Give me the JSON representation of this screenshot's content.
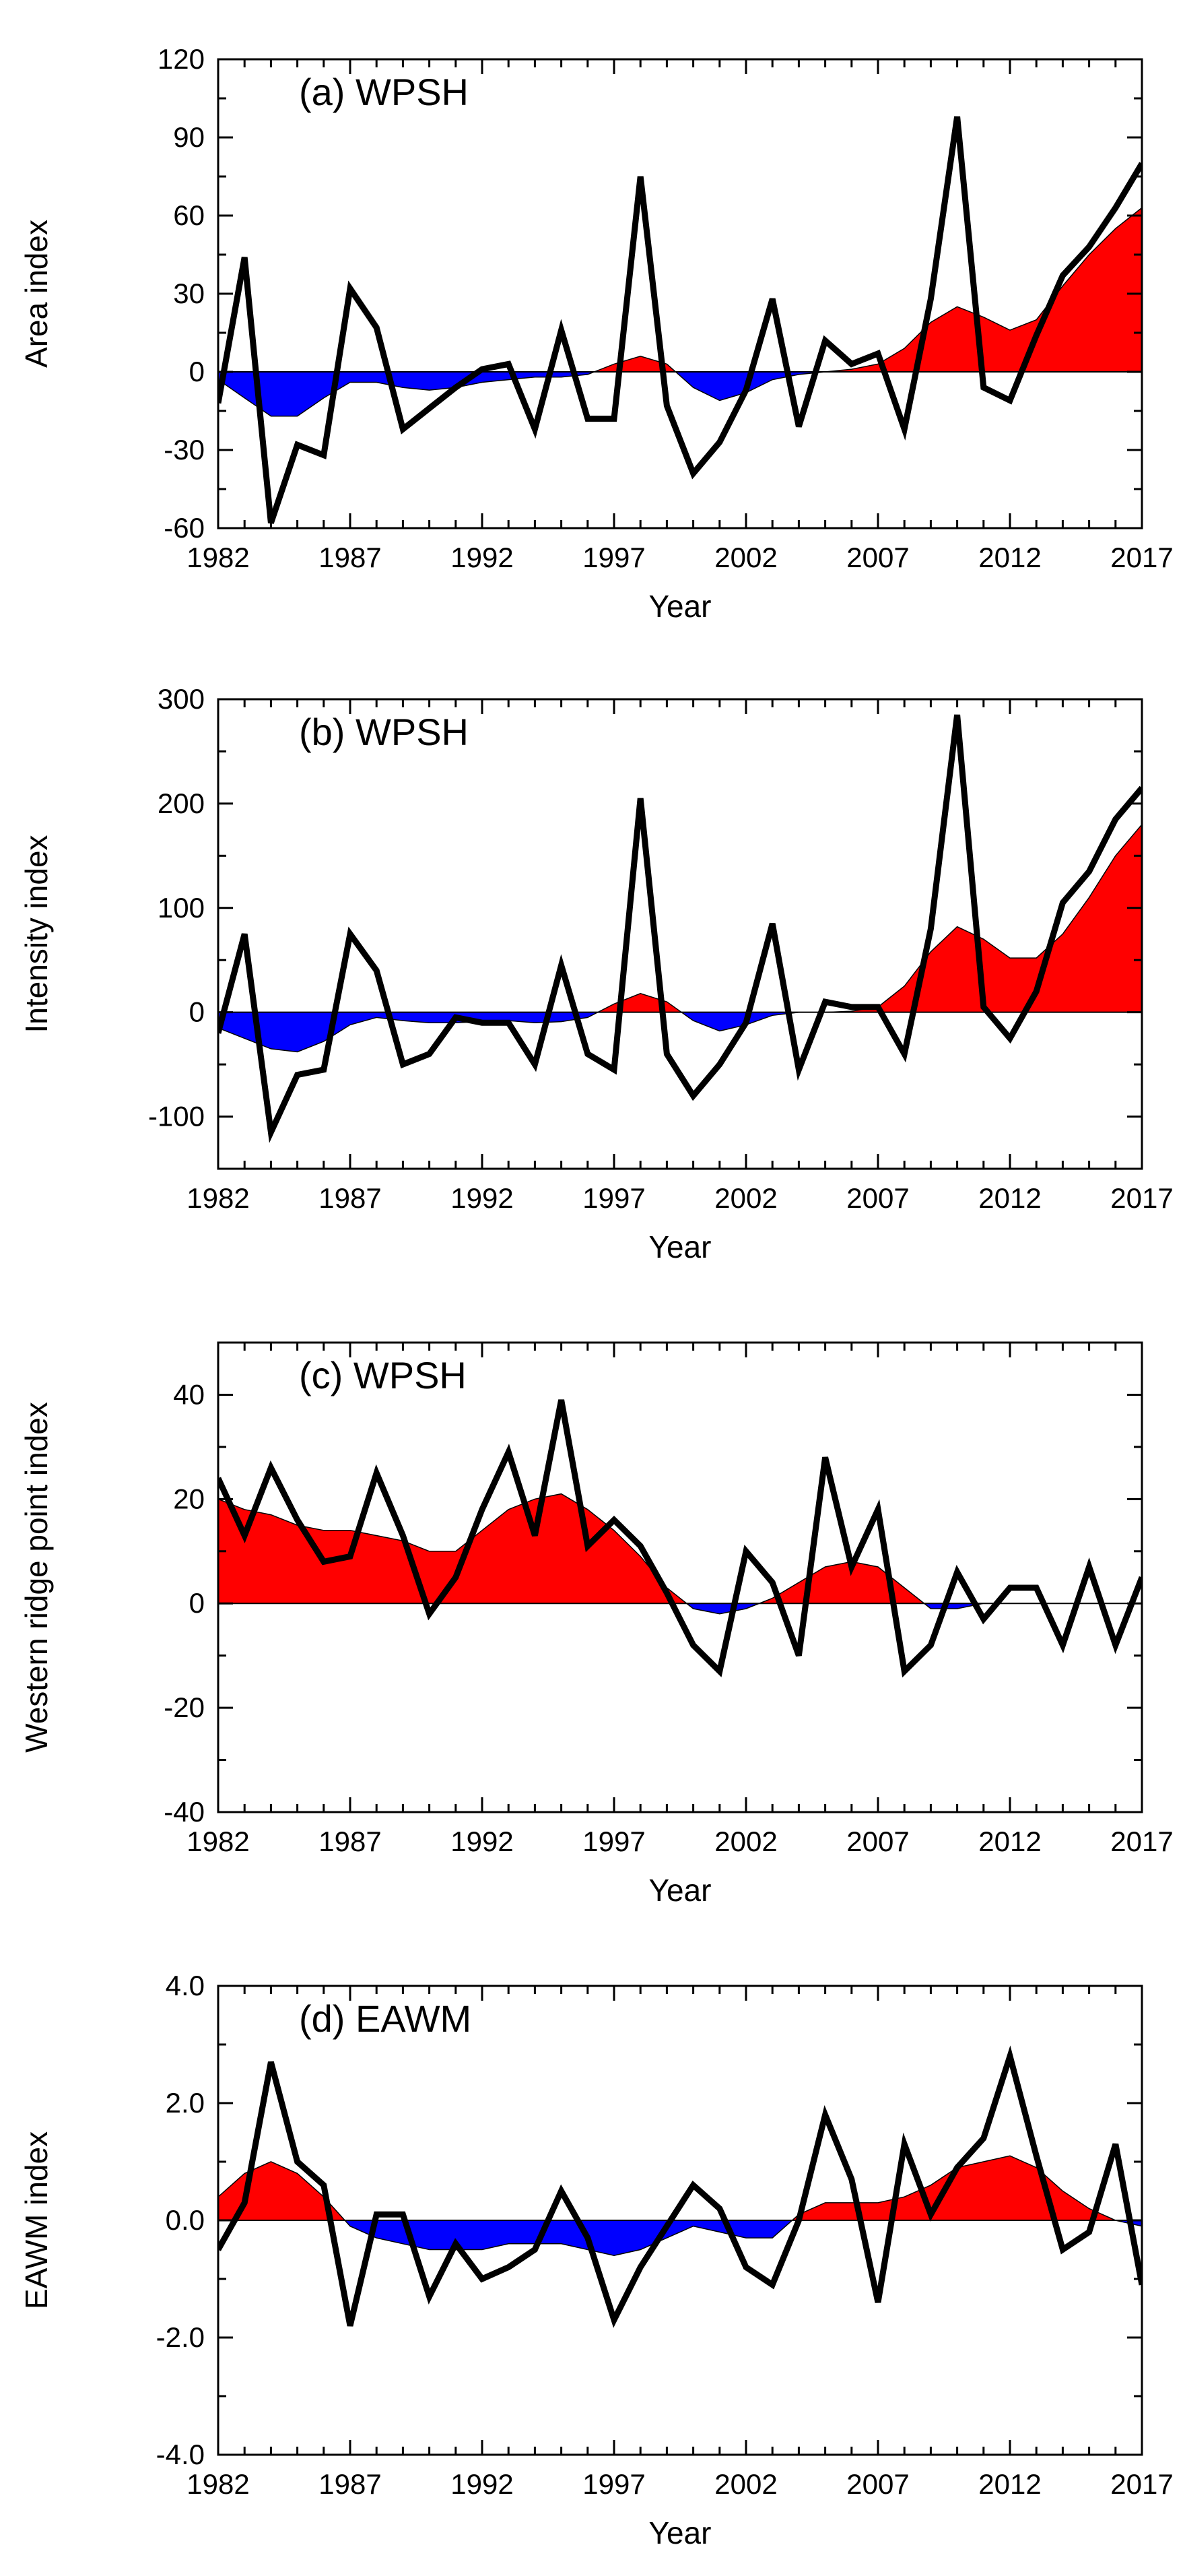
{
  "colors": {
    "positive": "#ff0000",
    "negative": "#0000ff",
    "line": "#000000",
    "axis": "#000000"
  },
  "chart_data": [
    {
      "type": "line",
      "title": "(a) WPSH",
      "xlabel": "Year",
      "ylabel": "Area index",
      "xlim": [
        1982,
        2017
      ],
      "ylim": [
        -60,
        120
      ],
      "xticks": [
        1982,
        1987,
        1992,
        1997,
        2002,
        2007,
        2012,
        2017
      ],
      "yticks": [
        120,
        90,
        60,
        30,
        0,
        -30,
        -60
      ],
      "ytick_labels": [
        "120",
        "90",
        "60",
        "30",
        "0",
        "-30",
        "-60"
      ],
      "years": [
        1982,
        1983,
        1984,
        1985,
        1986,
        1987,
        1988,
        1989,
        1990,
        1991,
        1992,
        1993,
        1994,
        1995,
        1996,
        1997,
        1998,
        1999,
        2000,
        2001,
        2002,
        2003,
        2004,
        2005,
        2006,
        2007,
        2008,
        2009,
        2010,
        2011,
        2012,
        2013,
        2014,
        2015,
        2016,
        2017
      ],
      "series": [
        {
          "name": "index",
          "style": "line",
          "values": [
            -12,
            44,
            -58,
            -28,
            -32,
            32,
            17,
            -22,
            -14,
            -6,
            1,
            3,
            -22,
            16,
            -18,
            -18,
            75,
            -13,
            -39,
            -27,
            -7,
            28,
            -21,
            12,
            3,
            7,
            -22,
            28,
            98,
            -6,
            -11,
            14,
            37,
            48,
            63,
            80
          ]
        },
        {
          "name": "smoothed",
          "style": "filled-area",
          "values": [
            -3,
            -10,
            -17,
            -17,
            -10,
            -4,
            -4,
            -6,
            -7,
            -6,
            -4,
            -3,
            -2,
            -2,
            -1,
            3,
            6,
            3,
            -6,
            -11,
            -8,
            -3,
            -1,
            0,
            1,
            3,
            9,
            19,
            25,
            21,
            16,
            20,
            33,
            45,
            55,
            63
          ]
        }
      ]
    },
    {
      "type": "line",
      "title": "(b) WPSH",
      "xlabel": "Year",
      "ylabel": "Intensity index",
      "xlim": [
        1982,
        2017
      ],
      "ylim": [
        -150,
        300
      ],
      "xticks": [
        1982,
        1987,
        1992,
        1997,
        2002,
        2007,
        2012,
        2017
      ],
      "yticks": [
        300,
        200,
        100,
        0,
        -100
      ],
      "ytick_labels": [
        "300",
        "200",
        "100",
        "0",
        "-100"
      ],
      "years": [
        1982,
        1983,
        1984,
        1985,
        1986,
        1987,
        1988,
        1989,
        1990,
        1991,
        1992,
        1993,
        1994,
        1995,
        1996,
        1997,
        1998,
        1999,
        2000,
        2001,
        2002,
        2003,
        2004,
        2005,
        2006,
        2007,
        2008,
        2009,
        2010,
        2011,
        2012,
        2013,
        2014,
        2015,
        2016,
        2017
      ],
      "series": [
        {
          "name": "index",
          "style": "line",
          "values": [
            -20,
            75,
            -115,
            -60,
            -55,
            75,
            40,
            -50,
            -40,
            -5,
            -10,
            -10,
            -50,
            45,
            -40,
            -55,
            205,
            -40,
            -80,
            -50,
            -10,
            85,
            -55,
            10,
            5,
            5,
            -40,
            80,
            285,
            5,
            -25,
            20,
            105,
            135,
            185,
            215
          ]
        },
        {
          "name": "smoothed",
          "style": "filled-area",
          "values": [
            -15,
            -25,
            -35,
            -38,
            -28,
            -12,
            -5,
            -8,
            -10,
            -10,
            -9,
            -8,
            -10,
            -9,
            -5,
            8,
            18,
            10,
            -8,
            -18,
            -12,
            -3,
            0,
            0,
            1,
            5,
            25,
            58,
            82,
            70,
            52,
            52,
            75,
            110,
            150,
            180
          ]
        }
      ]
    },
    {
      "type": "line",
      "title": "(c) WPSH",
      "xlabel": "Year",
      "ylabel": "Western ridge point index",
      "xlim": [
        1982,
        2017
      ],
      "ylim": [
        -40,
        50
      ],
      "xticks": [
        1982,
        1987,
        1992,
        1997,
        2002,
        2007,
        2012,
        2017
      ],
      "yticks": [
        40,
        20,
        0,
        -20,
        -40
      ],
      "ytick_labels": [
        "40",
        "20",
        "0",
        "-20",
        "-40"
      ],
      "years": [
        1982,
        1983,
        1984,
        1985,
        1986,
        1987,
        1988,
        1989,
        1990,
        1991,
        1992,
        1993,
        1994,
        1995,
        1996,
        1997,
        1998,
        1999,
        2000,
        2001,
        2002,
        2003,
        2004,
        2005,
        2006,
        2007,
        2008,
        2009,
        2010,
        2011,
        2012,
        2013,
        2014,
        2015,
        2016,
        2017
      ],
      "series": [
        {
          "name": "index",
          "style": "line",
          "values": [
            24,
            13,
            26,
            16,
            8,
            9,
            25,
            13,
            -2,
            5,
            18,
            29,
            13,
            39,
            11,
            16,
            11,
            2,
            -8,
            -13,
            10,
            4,
            -10,
            28,
            7,
            18,
            -13,
            -8,
            6,
            -3,
            3,
            3,
            -8,
            7,
            -8,
            5
          ]
        },
        {
          "name": "smoothed",
          "style": "filled-area",
          "values": [
            20,
            18,
            17,
            15,
            14,
            14,
            13,
            12,
            10,
            10,
            14,
            18,
            20,
            21,
            18,
            14,
            9,
            3,
            -1,
            -2,
            -1,
            1,
            4,
            7,
            8,
            7,
            3,
            -1,
            -1,
            0,
            0,
            0,
            0,
            0,
            0,
            0
          ]
        }
      ]
    },
    {
      "type": "line",
      "title": "(d) EAWM",
      "xlabel": "Year",
      "ylabel": "EAWM index",
      "xlim": [
        1982,
        2017
      ],
      "ylim": [
        -4,
        4
      ],
      "xticks": [
        1982,
        1987,
        1992,
        1997,
        2002,
        2007,
        2012,
        2017
      ],
      "yticks": [
        4,
        2,
        0,
        -2,
        -4
      ],
      "ytick_labels": [
        "4.0",
        "2.0",
        "0.0",
        "-2.0",
        "-4.0"
      ],
      "years": [
        1982,
        1983,
        1984,
        1985,
        1986,
        1987,
        1988,
        1989,
        1990,
        1991,
        1992,
        1993,
        1994,
        1995,
        1996,
        1997,
        1998,
        1999,
        2000,
        2001,
        2002,
        2003,
        2004,
        2005,
        2006,
        2007,
        2008,
        2009,
        2010,
        2011,
        2012,
        2013,
        2014,
        2015,
        2016,
        2017
      ],
      "series": [
        {
          "name": "index",
          "style": "line",
          "values": [
            -0.5,
            0.3,
            2.7,
            1.0,
            0.6,
            -1.8,
            0.1,
            0.1,
            -1.3,
            -0.4,
            -1.0,
            -0.8,
            -0.5,
            0.5,
            -0.3,
            -1.7,
            -0.8,
            -0.1,
            0.6,
            0.2,
            -0.8,
            -1.1,
            0.0,
            1.8,
            0.7,
            -1.4,
            1.3,
            0.1,
            0.9,
            1.4,
            2.8,
            1.1,
            -0.5,
            -0.2,
            1.3,
            -1.1
          ]
        },
        {
          "name": "smoothed",
          "style": "filled-area",
          "values": [
            0.4,
            0.8,
            1.0,
            0.8,
            0.4,
            -0.1,
            -0.3,
            -0.4,
            -0.5,
            -0.5,
            -0.5,
            -0.4,
            -0.4,
            -0.4,
            -0.5,
            -0.6,
            -0.5,
            -0.3,
            -0.1,
            -0.2,
            -0.3,
            -0.3,
            0.1,
            0.3,
            0.3,
            0.3,
            0.4,
            0.6,
            0.9,
            1.0,
            1.1,
            0.9,
            0.5,
            0.2,
            0.0,
            -0.1
          ]
        }
      ]
    }
  ]
}
